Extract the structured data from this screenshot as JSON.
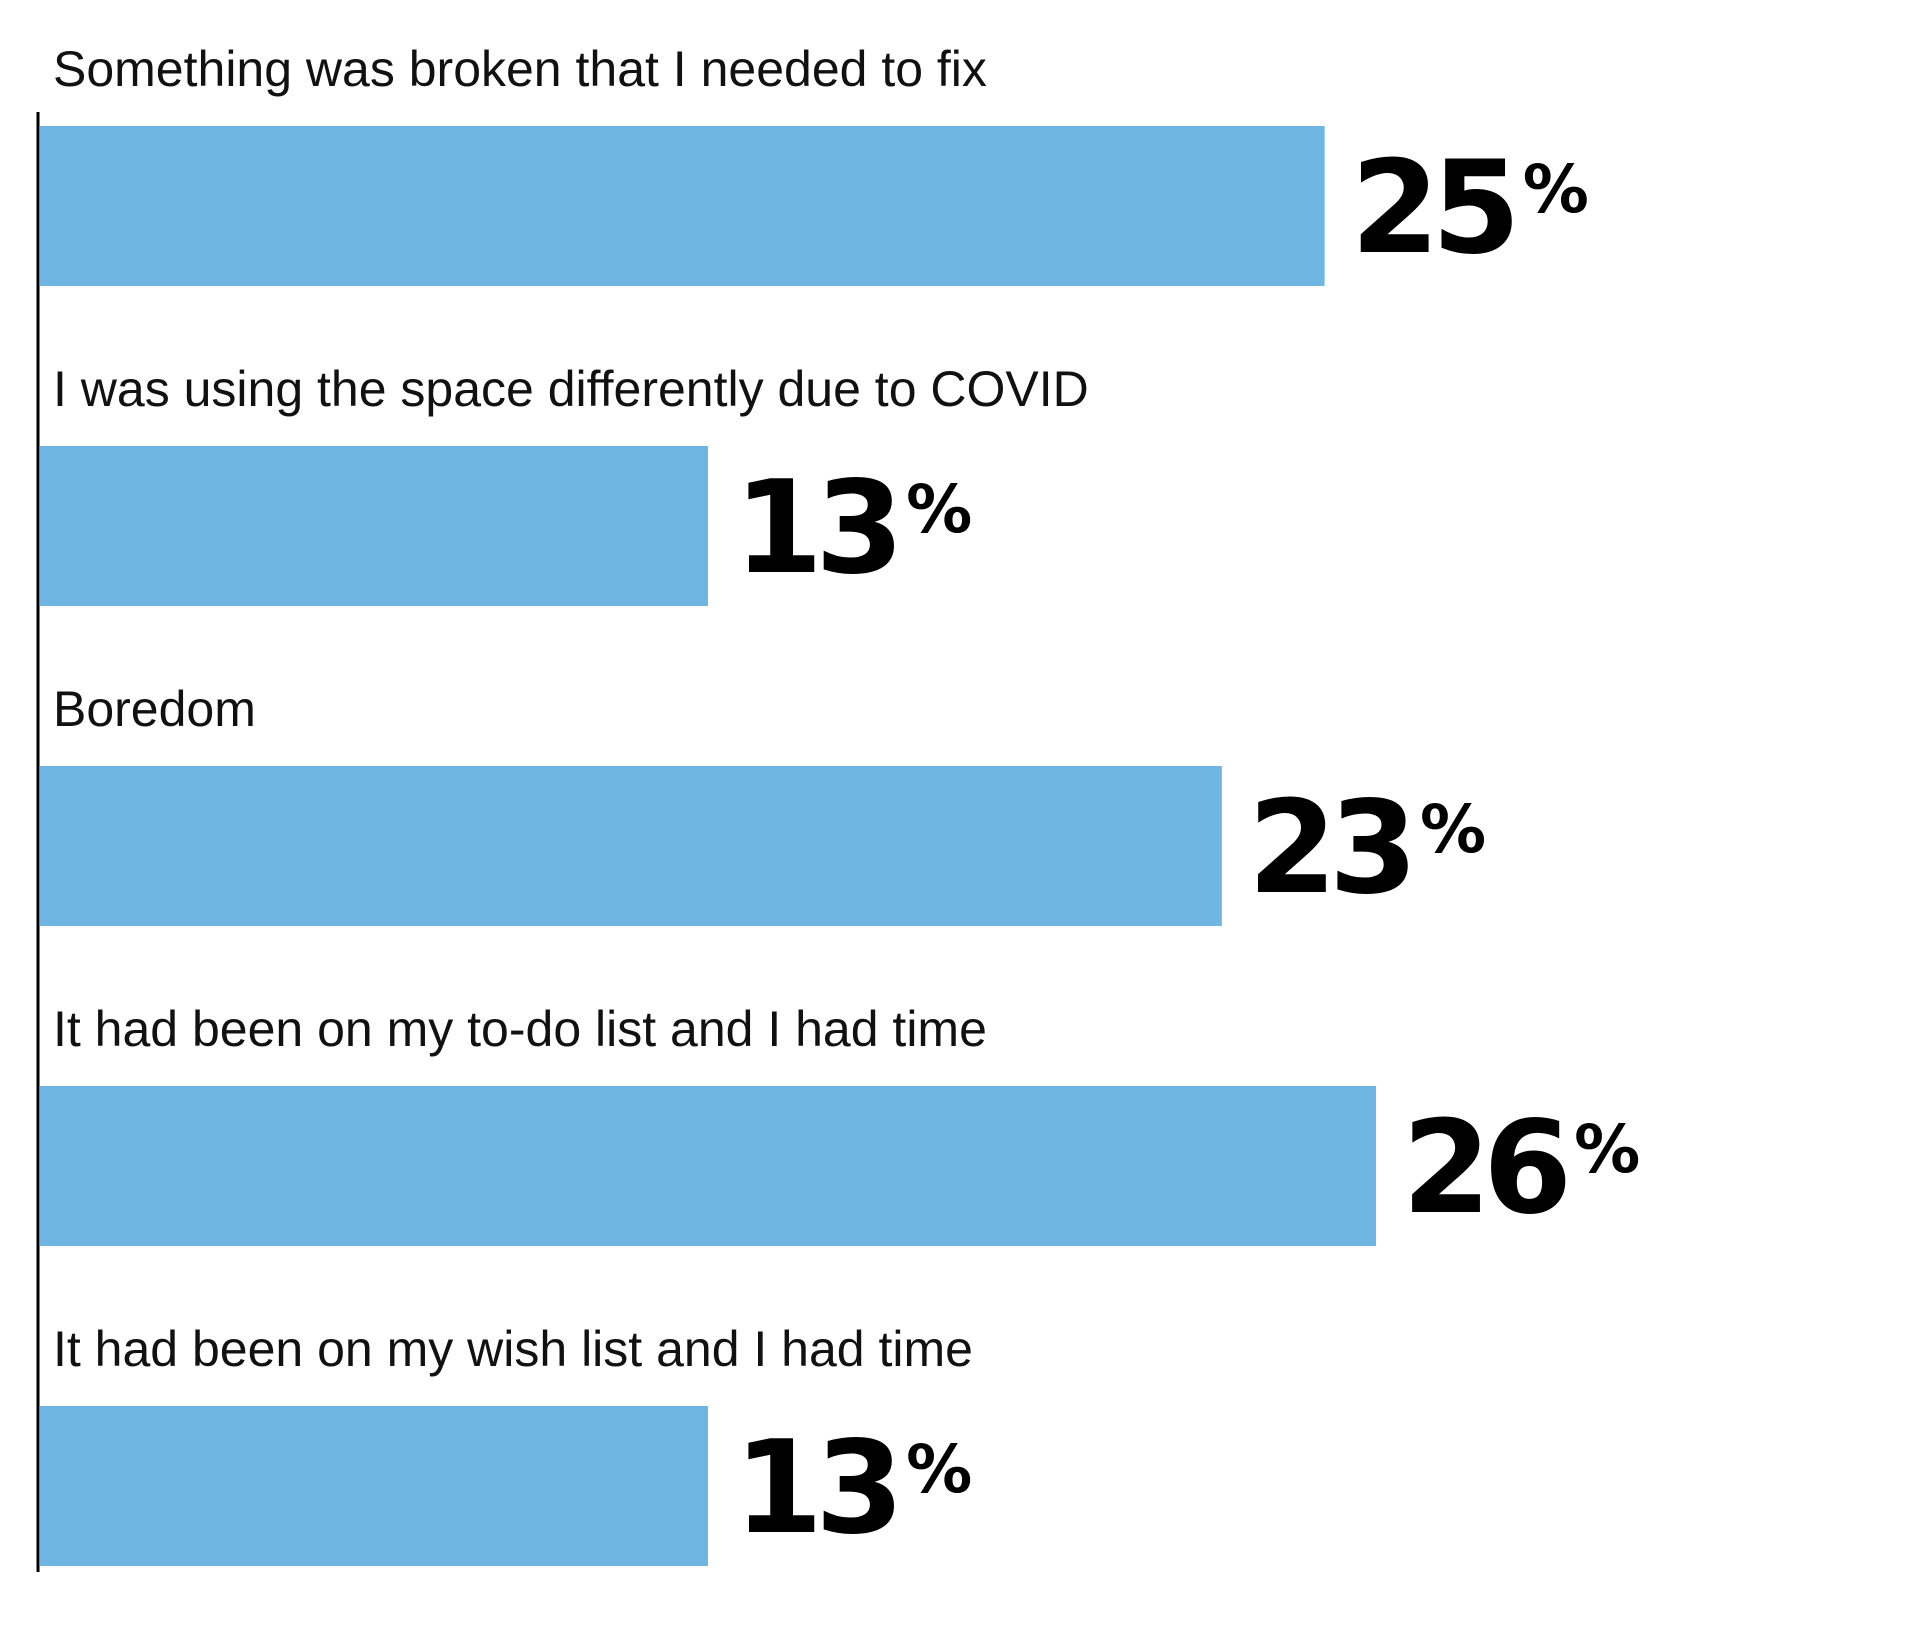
{
  "chart_data": {
    "type": "bar",
    "orientation": "horizontal",
    "categories": [
      "Something was broken that I needed to fix",
      "I was using the space differently due to COVID",
      "Boredom",
      "It had been on my to-do list and I had time",
      "It had been on my wish list and I had time"
    ],
    "values": [
      25,
      13,
      23,
      26,
      13
    ],
    "value_labels": [
      "25",
      "13",
      "23",
      "26",
      "13"
    ],
    "value_suffix": "%",
    "xlim": [
      0,
      26
    ],
    "grid": false,
    "legend": "none",
    "title": "",
    "xlabel": "",
    "ylabel": ""
  },
  "colors": {
    "bar": "#6eb5e2",
    "axis": "#000000",
    "text": "#111111"
  }
}
